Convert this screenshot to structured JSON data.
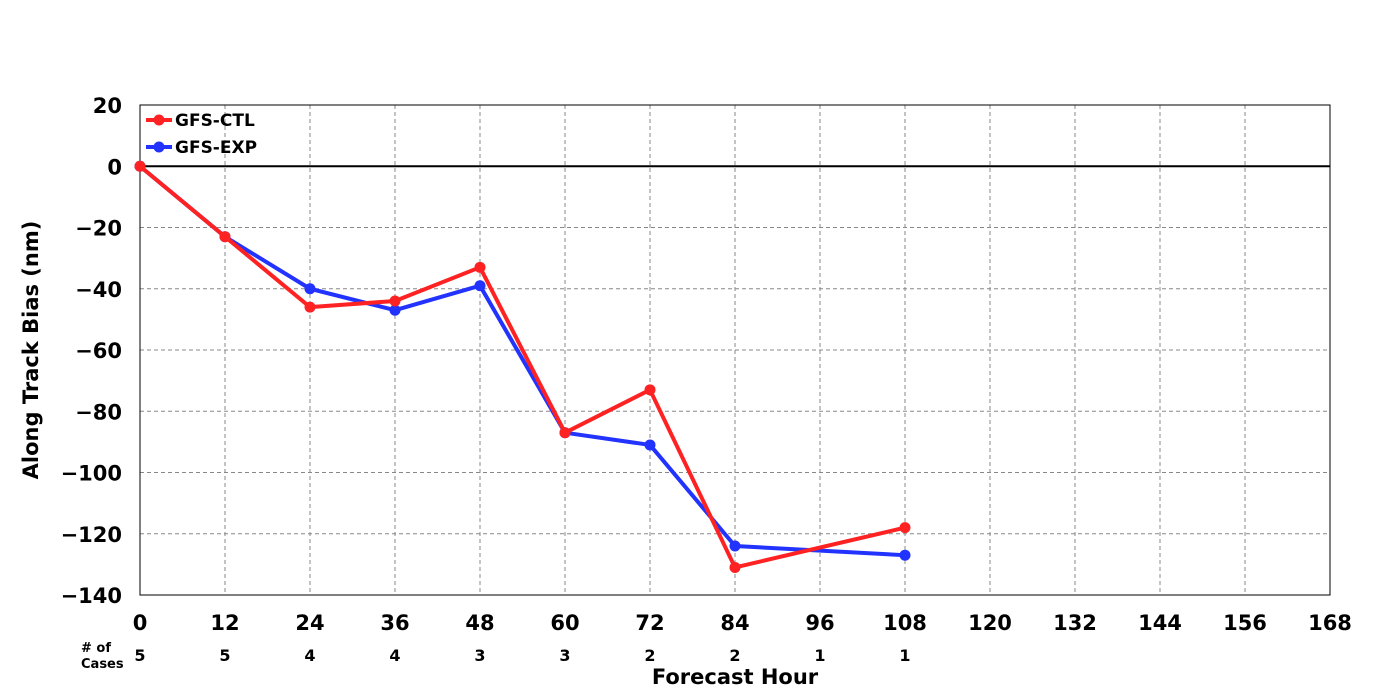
{
  "chart_data": {
    "type": "line",
    "title": "",
    "xlabel": "Forecast Hour",
    "ylabel": "Along Track Bias (nm)",
    "xlim": [
      0,
      168
    ],
    "ylim": [
      -140,
      20
    ],
    "xticks": [
      0,
      12,
      24,
      36,
      48,
      60,
      72,
      84,
      96,
      108,
      120,
      132,
      144,
      156,
      168
    ],
    "xtick_labels": [
      "0",
      "12",
      "24",
      "36",
      "48",
      "60",
      "72",
      "84",
      "96",
      "108",
      "120",
      "132",
      "144",
      "156",
      "168"
    ],
    "yticks": [
      20,
      0,
      -20,
      -40,
      -60,
      -80,
      -100,
      -120,
      -140
    ],
    "ytick_labels": [
      "20",
      "0",
      "−20",
      "−40",
      "−60",
      "−80",
      "−100",
      "−120",
      "−140"
    ],
    "grid": true,
    "legend_position": "top-left",
    "cases_label_line1": "# of",
    "cases_label_line2": "Cases",
    "cases": [
      {
        "x": 0,
        "label": "5"
      },
      {
        "x": 12,
        "label": "5"
      },
      {
        "x": 24,
        "label": "4"
      },
      {
        "x": 36,
        "label": "4"
      },
      {
        "x": 48,
        "label": "3"
      },
      {
        "x": 60,
        "label": "3"
      },
      {
        "x": 72,
        "label": "2"
      },
      {
        "x": 84,
        "label": "2"
      },
      {
        "x": 96,
        "label": "1"
      },
      {
        "x": 108,
        "label": "1"
      }
    ],
    "series": [
      {
        "name": "GFS-EXP",
        "color": "#2233ff",
        "x": [
          0,
          12,
          24,
          36,
          48,
          60,
          72,
          84,
          108
        ],
        "y": [
          0,
          -23,
          -40,
          -47,
          -39,
          -87,
          -91,
          -124,
          -127
        ]
      },
      {
        "name": "GFS-CTL",
        "color": "#ff2222",
        "x": [
          0,
          12,
          24,
          36,
          48,
          60,
          72,
          84,
          108
        ],
        "y": [
          0,
          -23,
          -46,
          -44,
          -33,
          -87,
          -73,
          -131,
          -118
        ]
      }
    ],
    "legend_order": [
      "GFS-CTL",
      "GFS-EXP"
    ]
  }
}
